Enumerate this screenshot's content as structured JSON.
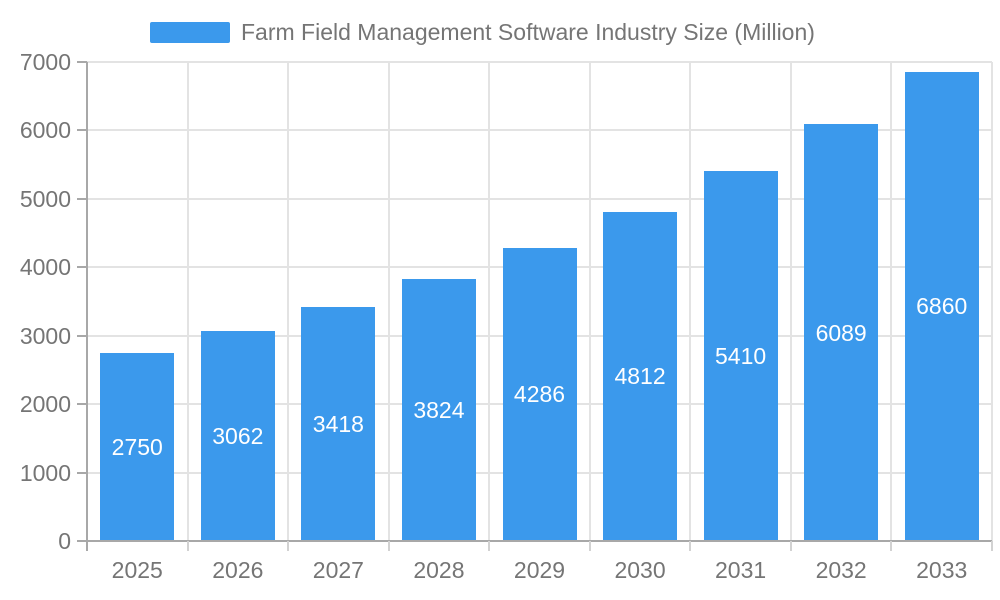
{
  "legend": {
    "position": "top"
  },
  "chart_data": {
    "type": "bar",
    "title": "Farm Field Management Software Industry Size (Million)",
    "categories": [
      "2025",
      "2026",
      "2027",
      "2028",
      "2029",
      "2030",
      "2031",
      "2032",
      "2033"
    ],
    "values": [
      2750,
      3062,
      3418,
      3824,
      4286,
      4812,
      5410,
      6089,
      6860
    ],
    "xlabel": "",
    "ylabel": "",
    "ylim": [
      0,
      7000
    ],
    "ytick_step": 1000,
    "grid": true,
    "legend_position": "top",
    "bar_labels_inside": true,
    "colors": {
      "bar": "#3B99EC",
      "bar_label": "#FFFFFF",
      "grid": "#E3E3E3",
      "axis": "#A8A8A8",
      "boundary_tick": "#D2D2D2",
      "tick_label": "#757575",
      "background": "#FFFFFF"
    }
  }
}
